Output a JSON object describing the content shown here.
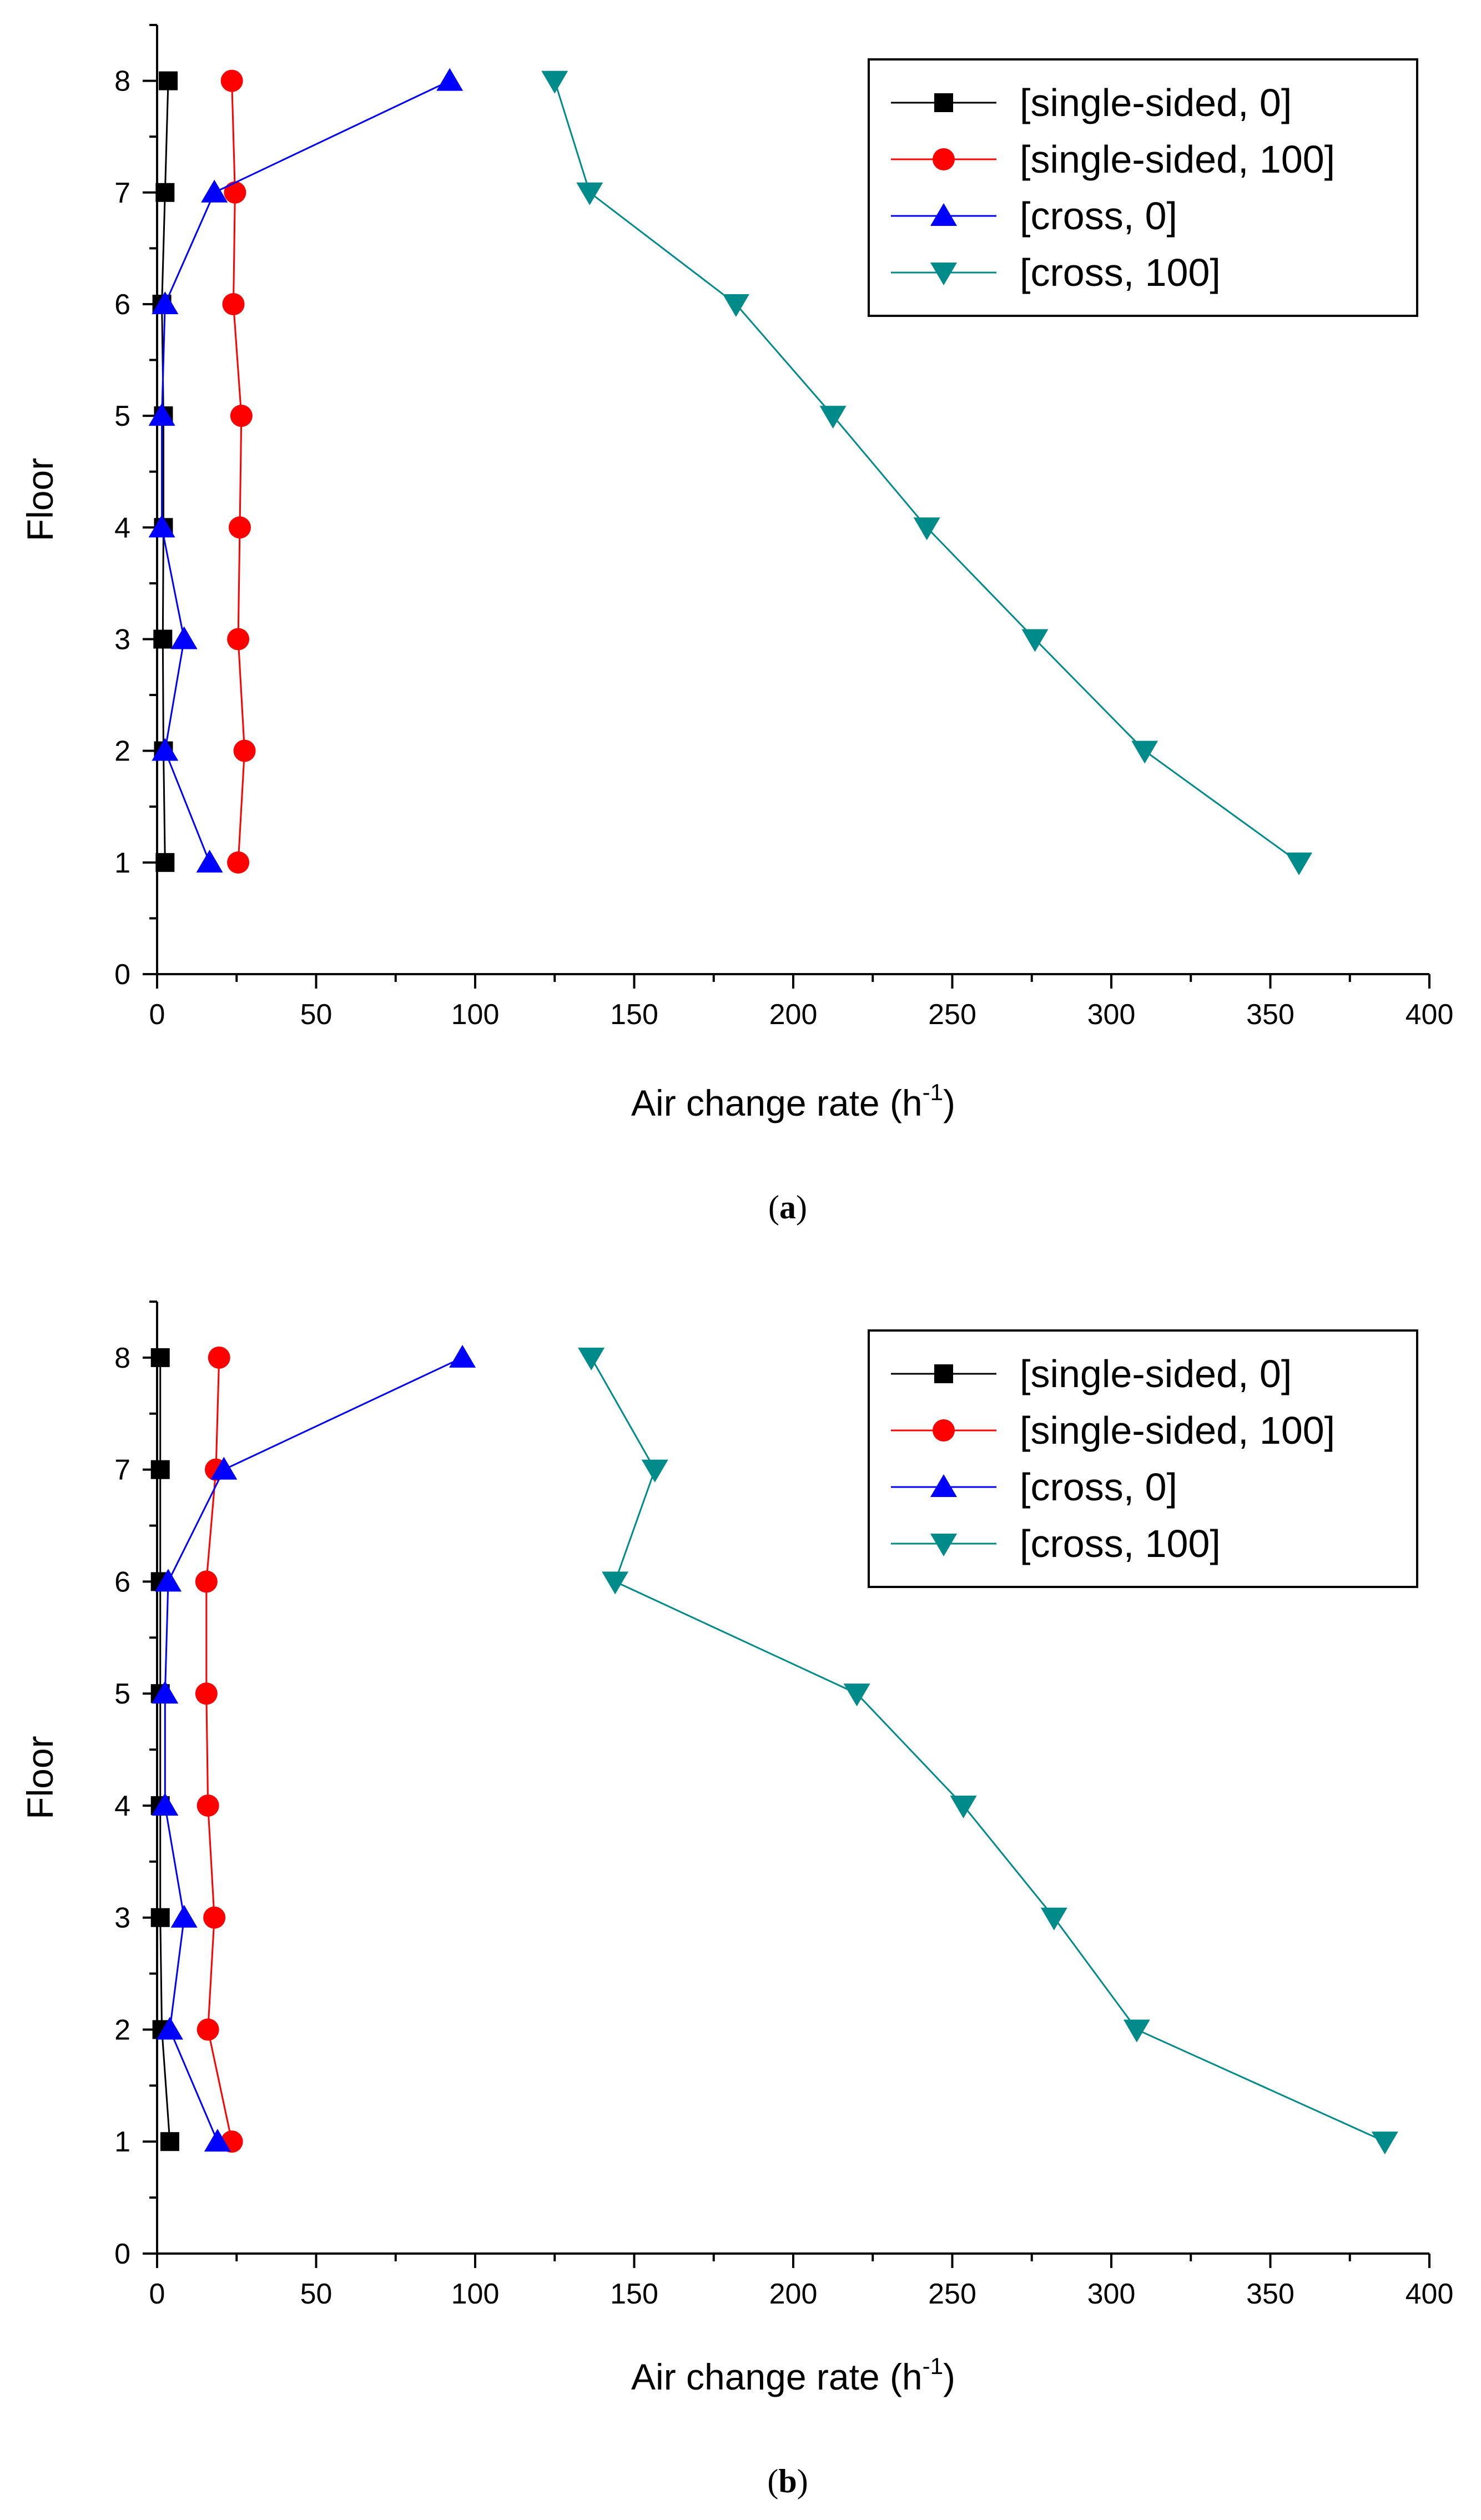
{
  "chart_data": [
    {
      "type": "line",
      "panel_label": "a",
      "xlabel": "Air change rate (h",
      "xlabel_superscript": "-1",
      "xlabel_close": ")",
      "ylabel": "Floor",
      "xlim": [
        0,
        400
      ],
      "ylim": [
        0,
        8.5
      ],
      "xticks": [
        "0",
        "50",
        "100",
        "150",
        "200",
        "250",
        "300",
        "350",
        "400"
      ],
      "yticks": [
        "0",
        "1",
        "2",
        "3",
        "4",
        "5",
        "6",
        "7",
        "8"
      ],
      "legend_position": "top-right",
      "series": [
        {
          "name": "[single-sided, 0]",
          "color": "#000000",
          "marker": "square",
          "x": [
            2.5,
            2,
            1.8,
            2,
            2,
            1.5,
            2.5,
            3.5
          ],
          "y": [
            1,
            2,
            3,
            4,
            5,
            6,
            7,
            8
          ]
        },
        {
          "name": "[single-sided, 100]",
          "color": "#ff0000",
          "marker": "circle",
          "x": [
            25.5,
            27.5,
            25.5,
            26,
            26.5,
            24,
            24.5,
            23.5
          ],
          "y": [
            1,
            2,
            3,
            4,
            5,
            6,
            7,
            8
          ]
        },
        {
          "name": "[cross, 0]",
          "color": "#0000ff",
          "marker": "triangle-up",
          "x": [
            16.5,
            2.5,
            8.5,
            1.5,
            1.5,
            2.5,
            18,
            92
          ],
          "y": [
            1,
            2,
            3,
            4,
            5,
            6,
            7,
            8
          ]
        },
        {
          "name": "[cross, 100]",
          "color": "#008b8b",
          "marker": "triangle-down",
          "x": [
            359,
            310.5,
            276,
            242,
            212.5,
            182,
            136,
            125
          ],
          "y": [
            1,
            2,
            3,
            4,
            5,
            6,
            7,
            8
          ]
        }
      ]
    },
    {
      "type": "line",
      "panel_label": "b",
      "xlabel": "Air change rate (h",
      "xlabel_superscript": "-1",
      "xlabel_close": ")",
      "ylabel": "Floor",
      "xlim": [
        0,
        400
      ],
      "ylim": [
        0,
        8.5
      ],
      "xticks": [
        "0",
        "50",
        "100",
        "150",
        "200",
        "250",
        "300",
        "350",
        "400"
      ],
      "yticks": [
        "0",
        "1",
        "2",
        "3",
        "4",
        "5",
        "6",
        "7",
        "8"
      ],
      "legend_position": "top-right",
      "series": [
        {
          "name": "[single-sided, 0]",
          "color": "#000000",
          "marker": "square",
          "x": [
            4,
            1.5,
            1,
            1,
            1,
            1,
            1,
            1
          ],
          "y": [
            1,
            2,
            3,
            4,
            5,
            6,
            7,
            8
          ]
        },
        {
          "name": "[single-sided, 100]",
          "color": "#ff0000",
          "marker": "circle",
          "x": [
            23.5,
            16,
            18,
            16,
            15.5,
            15.5,
            18.5,
            19.5
          ],
          "y": [
            1,
            2,
            3,
            4,
            5,
            6,
            7,
            8
          ]
        },
        {
          "name": "[cross, 0]",
          "color": "#0000ff",
          "marker": "triangle-up",
          "x": [
            19,
            4,
            8.5,
            2.5,
            2.5,
            3.5,
            21,
            96
          ],
          "y": [
            1,
            2,
            3,
            4,
            5,
            6,
            7,
            8
          ]
        },
        {
          "name": "[cross, 100]",
          "color": "#008b8b",
          "marker": "triangle-down",
          "x": [
            386,
            308,
            282,
            253.5,
            220,
            144,
            156.5,
            136.5
          ],
          "y": [
            1,
            2,
            3,
            4,
            5,
            6,
            7,
            8
          ]
        }
      ]
    }
  ]
}
